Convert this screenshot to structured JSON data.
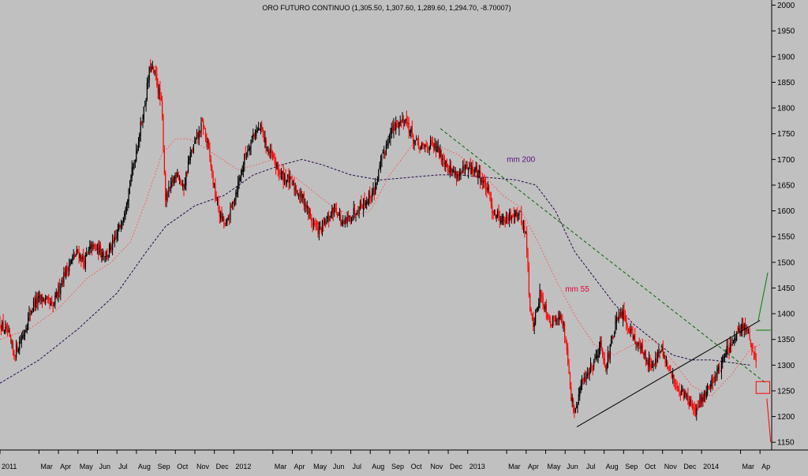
{
  "chart_data": {
    "type": "candlestick",
    "title": "ORO FUTURO CONTINUO (1,305.50, 1,307.60, 1,289.60, 1,294.70, -8.70007)",
    "ylim": [
      1135,
      2010
    ],
    "y_ticks": [
      2000,
      1950,
      1900,
      1850,
      1800,
      1750,
      1700,
      1650,
      1600,
      1550,
      1500,
      1450,
      1400,
      1350,
      1300,
      1250,
      1200,
      1150
    ],
    "x_tick_labels": [
      "2011",
      "Mar",
      "Apr",
      "May",
      "Jun",
      "Jul",
      "Aug",
      "Sep",
      "Oct",
      "Nov",
      "Dec",
      "2012",
      "Mar",
      "Apr",
      "May",
      "Jun",
      "Jul",
      "Aug",
      "Sep",
      "Oct",
      "Nov",
      "Dec",
      "2013",
      "Mar",
      "Apr",
      "May",
      "Jun",
      "Jul",
      "Aug",
      "Sep",
      "Oct",
      "Nov",
      "Dec",
      "2014",
      "Mar",
      "Ap"
    ],
    "x_tick_months": [
      0,
      2,
      3,
      4,
      5,
      6,
      7,
      8,
      9,
      10,
      11,
      12,
      14,
      15,
      16,
      17,
      18,
      19,
      20,
      21,
      22,
      23,
      24,
      26,
      27,
      28,
      29,
      30,
      31,
      32,
      33,
      34,
      35,
      36,
      38,
      39
    ],
    "x_range_months": [
      0,
      39.6
    ],
    "price_path": [
      [
        0.0,
        1380
      ],
      [
        0.4,
        1360
      ],
      [
        0.7,
        1320
      ],
      [
        1.2,
        1360
      ],
      [
        1.7,
        1420
      ],
      [
        2.2,
        1430
      ],
      [
        2.7,
        1410
      ],
      [
        3.2,
        1470
      ],
      [
        3.6,
        1500
      ],
      [
        4.0,
        1520
      ],
      [
        4.3,
        1500
      ],
      [
        4.7,
        1530
      ],
      [
        5.0,
        1525
      ],
      [
        5.5,
        1515
      ],
      [
        5.9,
        1540
      ],
      [
        6.3,
        1590
      ],
      [
        6.6,
        1640
      ],
      [
        7.0,
        1720
      ],
      [
        7.4,
        1800
      ],
      [
        7.7,
        1880
      ],
      [
        8.0,
        1860
      ],
      [
        8.3,
        1800
      ],
      [
        8.5,
        1620
      ],
      [
        8.8,
        1650
      ],
      [
        9.1,
        1680
      ],
      [
        9.4,
        1640
      ],
      [
        9.7,
        1700
      ],
      [
        10.1,
        1740
      ],
      [
        10.4,
        1770
      ],
      [
        10.7,
        1720
      ],
      [
        11.0,
        1640
      ],
      [
        11.3,
        1590
      ],
      [
        11.6,
        1570
      ],
      [
        11.9,
        1610
      ],
      [
        12.2,
        1650
      ],
      [
        12.6,
        1710
      ],
      [
        13.0,
        1750
      ],
      [
        13.4,
        1760
      ],
      [
        13.7,
        1720
      ],
      [
        14.0,
        1700
      ],
      [
        14.4,
        1670
      ],
      [
        14.8,
        1660
      ],
      [
        15.2,
        1640
      ],
      [
        15.6,
        1620
      ],
      [
        16.0,
        1580
      ],
      [
        16.4,
        1560
      ],
      [
        16.8,
        1580
      ],
      [
        17.2,
        1610
      ],
      [
        17.6,
        1570
      ],
      [
        18.0,
        1590
      ],
      [
        18.4,
        1610
      ],
      [
        18.8,
        1620
      ],
      [
        19.2,
        1640
      ],
      [
        19.6,
        1700
      ],
      [
        20.0,
        1750
      ],
      [
        20.4,
        1770
      ],
      [
        20.8,
        1780
      ],
      [
        21.2,
        1740
      ],
      [
        21.6,
        1720
      ],
      [
        22.0,
        1730
      ],
      [
        22.4,
        1720
      ],
      [
        22.8,
        1700
      ],
      [
        23.1,
        1680
      ],
      [
        23.5,
        1670
      ],
      [
        23.9,
        1680
      ],
      [
        24.3,
        1680
      ],
      [
        24.6,
        1670
      ],
      [
        25.0,
        1640
      ],
      [
        25.3,
        1600
      ],
      [
        25.6,
        1590
      ],
      [
        26.0,
        1580
      ],
      [
        26.4,
        1600
      ],
      [
        26.7,
        1590
      ],
      [
        27.0,
        1550
      ],
      [
        27.2,
        1400
      ],
      [
        27.4,
        1380
      ],
      [
        27.7,
        1440
      ],
      [
        28.0,
        1410
      ],
      [
        28.3,
        1380
      ],
      [
        28.6,
        1400
      ],
      [
        28.9,
        1380
      ],
      [
        29.1,
        1330
      ],
      [
        29.3,
        1240
      ],
      [
        29.5,
        1200
      ],
      [
        29.8,
        1260
      ],
      [
        30.1,
        1280
      ],
      [
        30.5,
        1310
      ],
      [
        30.8,
        1340
      ],
      [
        31.1,
        1300
      ],
      [
        31.3,
        1330
      ],
      [
        31.6,
        1380
      ],
      [
        31.9,
        1400
      ],
      [
        32.2,
        1380
      ],
      [
        32.6,
        1350
      ],
      [
        32.9,
        1330
      ],
      [
        33.2,
        1310
      ],
      [
        33.5,
        1300
      ],
      [
        33.9,
        1330
      ],
      [
        34.2,
        1300
      ],
      [
        34.6,
        1270
      ],
      [
        34.9,
        1250
      ],
      [
        35.2,
        1240
      ],
      [
        35.5,
        1220
      ],
      [
        35.7,
        1200
      ],
      [
        35.9,
        1230
      ],
      [
        36.1,
        1240
      ],
      [
        36.4,
        1260
      ],
      [
        36.7,
        1280
      ],
      [
        37.0,
        1300
      ],
      [
        37.3,
        1330
      ],
      [
        37.6,
        1340
      ],
      [
        37.9,
        1360
      ],
      [
        38.1,
        1380
      ],
      [
        38.3,
        1370
      ],
      [
        38.6,
        1330
      ],
      [
        38.8,
        1300
      ]
    ],
    "ma55_path": [
      [
        0.0,
        1350
      ],
      [
        1.5,
        1370
      ],
      [
        3.0,
        1410
      ],
      [
        4.5,
        1470
      ],
      [
        5.7,
        1500
      ],
      [
        6.7,
        1540
      ],
      [
        7.5,
        1620
      ],
      [
        8.3,
        1710
      ],
      [
        9.0,
        1740
      ],
      [
        9.7,
        1740
      ],
      [
        10.6,
        1720
      ],
      [
        11.4,
        1700
      ],
      [
        12.2,
        1680
      ],
      [
        13.2,
        1690
      ],
      [
        14.0,
        1700
      ],
      [
        15.0,
        1670
      ],
      [
        16.0,
        1640
      ],
      [
        17.0,
        1610
      ],
      [
        18.0,
        1590
      ],
      [
        19.0,
        1600
      ],
      [
        20.0,
        1670
      ],
      [
        21.2,
        1730
      ],
      [
        22.2,
        1730
      ],
      [
        23.5,
        1710
      ],
      [
        24.8,
        1670
      ],
      [
        25.8,
        1630
      ],
      [
        26.6,
        1610
      ],
      [
        27.6,
        1540
      ],
      [
        28.6,
        1460
      ],
      [
        29.6,
        1390
      ],
      [
        30.5,
        1340
      ],
      [
        31.5,
        1320
      ],
      [
        32.5,
        1340
      ],
      [
        33.5,
        1350
      ],
      [
        34.5,
        1310
      ],
      [
        35.5,
        1260
      ],
      [
        36.5,
        1240
      ],
      [
        37.5,
        1280
      ],
      [
        38.5,
        1330
      ],
      [
        39.0,
        1340
      ]
    ],
    "ma200_path": [
      [
        0.0,
        1265
      ],
      [
        2.0,
        1310
      ],
      [
        4.0,
        1370
      ],
      [
        6.0,
        1440
      ],
      [
        7.5,
        1520
      ],
      [
        8.5,
        1570
      ],
      [
        10.0,
        1610
      ],
      [
        11.5,
        1630
      ],
      [
        13.0,
        1670
      ],
      [
        14.5,
        1690
      ],
      [
        15.5,
        1700
      ],
      [
        16.5,
        1690
      ],
      [
        18.0,
        1670
      ],
      [
        19.5,
        1660
      ],
      [
        21.0,
        1665
      ],
      [
        22.5,
        1670
      ],
      [
        23.5,
        1670
      ],
      [
        25.0,
        1665
      ],
      [
        26.5,
        1660
      ],
      [
        27.5,
        1650
      ],
      [
        28.5,
        1600
      ],
      [
        29.5,
        1520
      ],
      [
        30.5,
        1470
      ],
      [
        31.5,
        1420
      ],
      [
        32.5,
        1380
      ],
      [
        33.5,
        1350
      ],
      [
        34.5,
        1320
      ],
      [
        35.5,
        1310
      ],
      [
        36.5,
        1310
      ],
      [
        37.5,
        1305
      ],
      [
        38.5,
        1300
      ]
    ],
    "trendlines": [
      {
        "role": "resistance",
        "style": "dashed",
        "color": "#006600",
        "from": [
          22.6,
          1760
        ],
        "to": [
          39.3,
          1265
        ]
      },
      {
        "role": "support",
        "style": "solid",
        "color": "#000000",
        "from": [
          29.6,
          1180
        ],
        "to": [
          39.0,
          1387
        ]
      },
      {
        "role": "projection-up",
        "style": "solid",
        "color": "#008000",
        "from": [
          38.9,
          1385
        ],
        "to": [
          39.4,
          1480
        ]
      },
      {
        "role": "projection-down",
        "style": "solid",
        "color": "#ff0000",
        "from": [
          39.35,
          1235
        ],
        "to": [
          39.55,
          1150
        ]
      },
      {
        "role": "level",
        "style": "solid",
        "color": "#008000",
        "from": [
          38.8,
          1368
        ],
        "to": [
          39.55,
          1368
        ]
      }
    ],
    "target_box": {
      "x": [
        38.8,
        39.5
      ],
      "y": [
        1245,
        1268
      ],
      "color": "#ff0000"
    },
    "annotations": [
      {
        "text": "mm 200",
        "x": 26.0,
        "y": 1695,
        "color": "#5a0f7a"
      },
      {
        "text": "mm 55",
        "x": 29.0,
        "y": 1443,
        "color": "#e0003a"
      }
    ],
    "colors": {
      "background": "#c0c0c0",
      "up": "#000000",
      "down": "#ff0000",
      "ma55": "#ff5050",
      "ma200": "#2a0a4a",
      "axis": "#000000"
    }
  }
}
